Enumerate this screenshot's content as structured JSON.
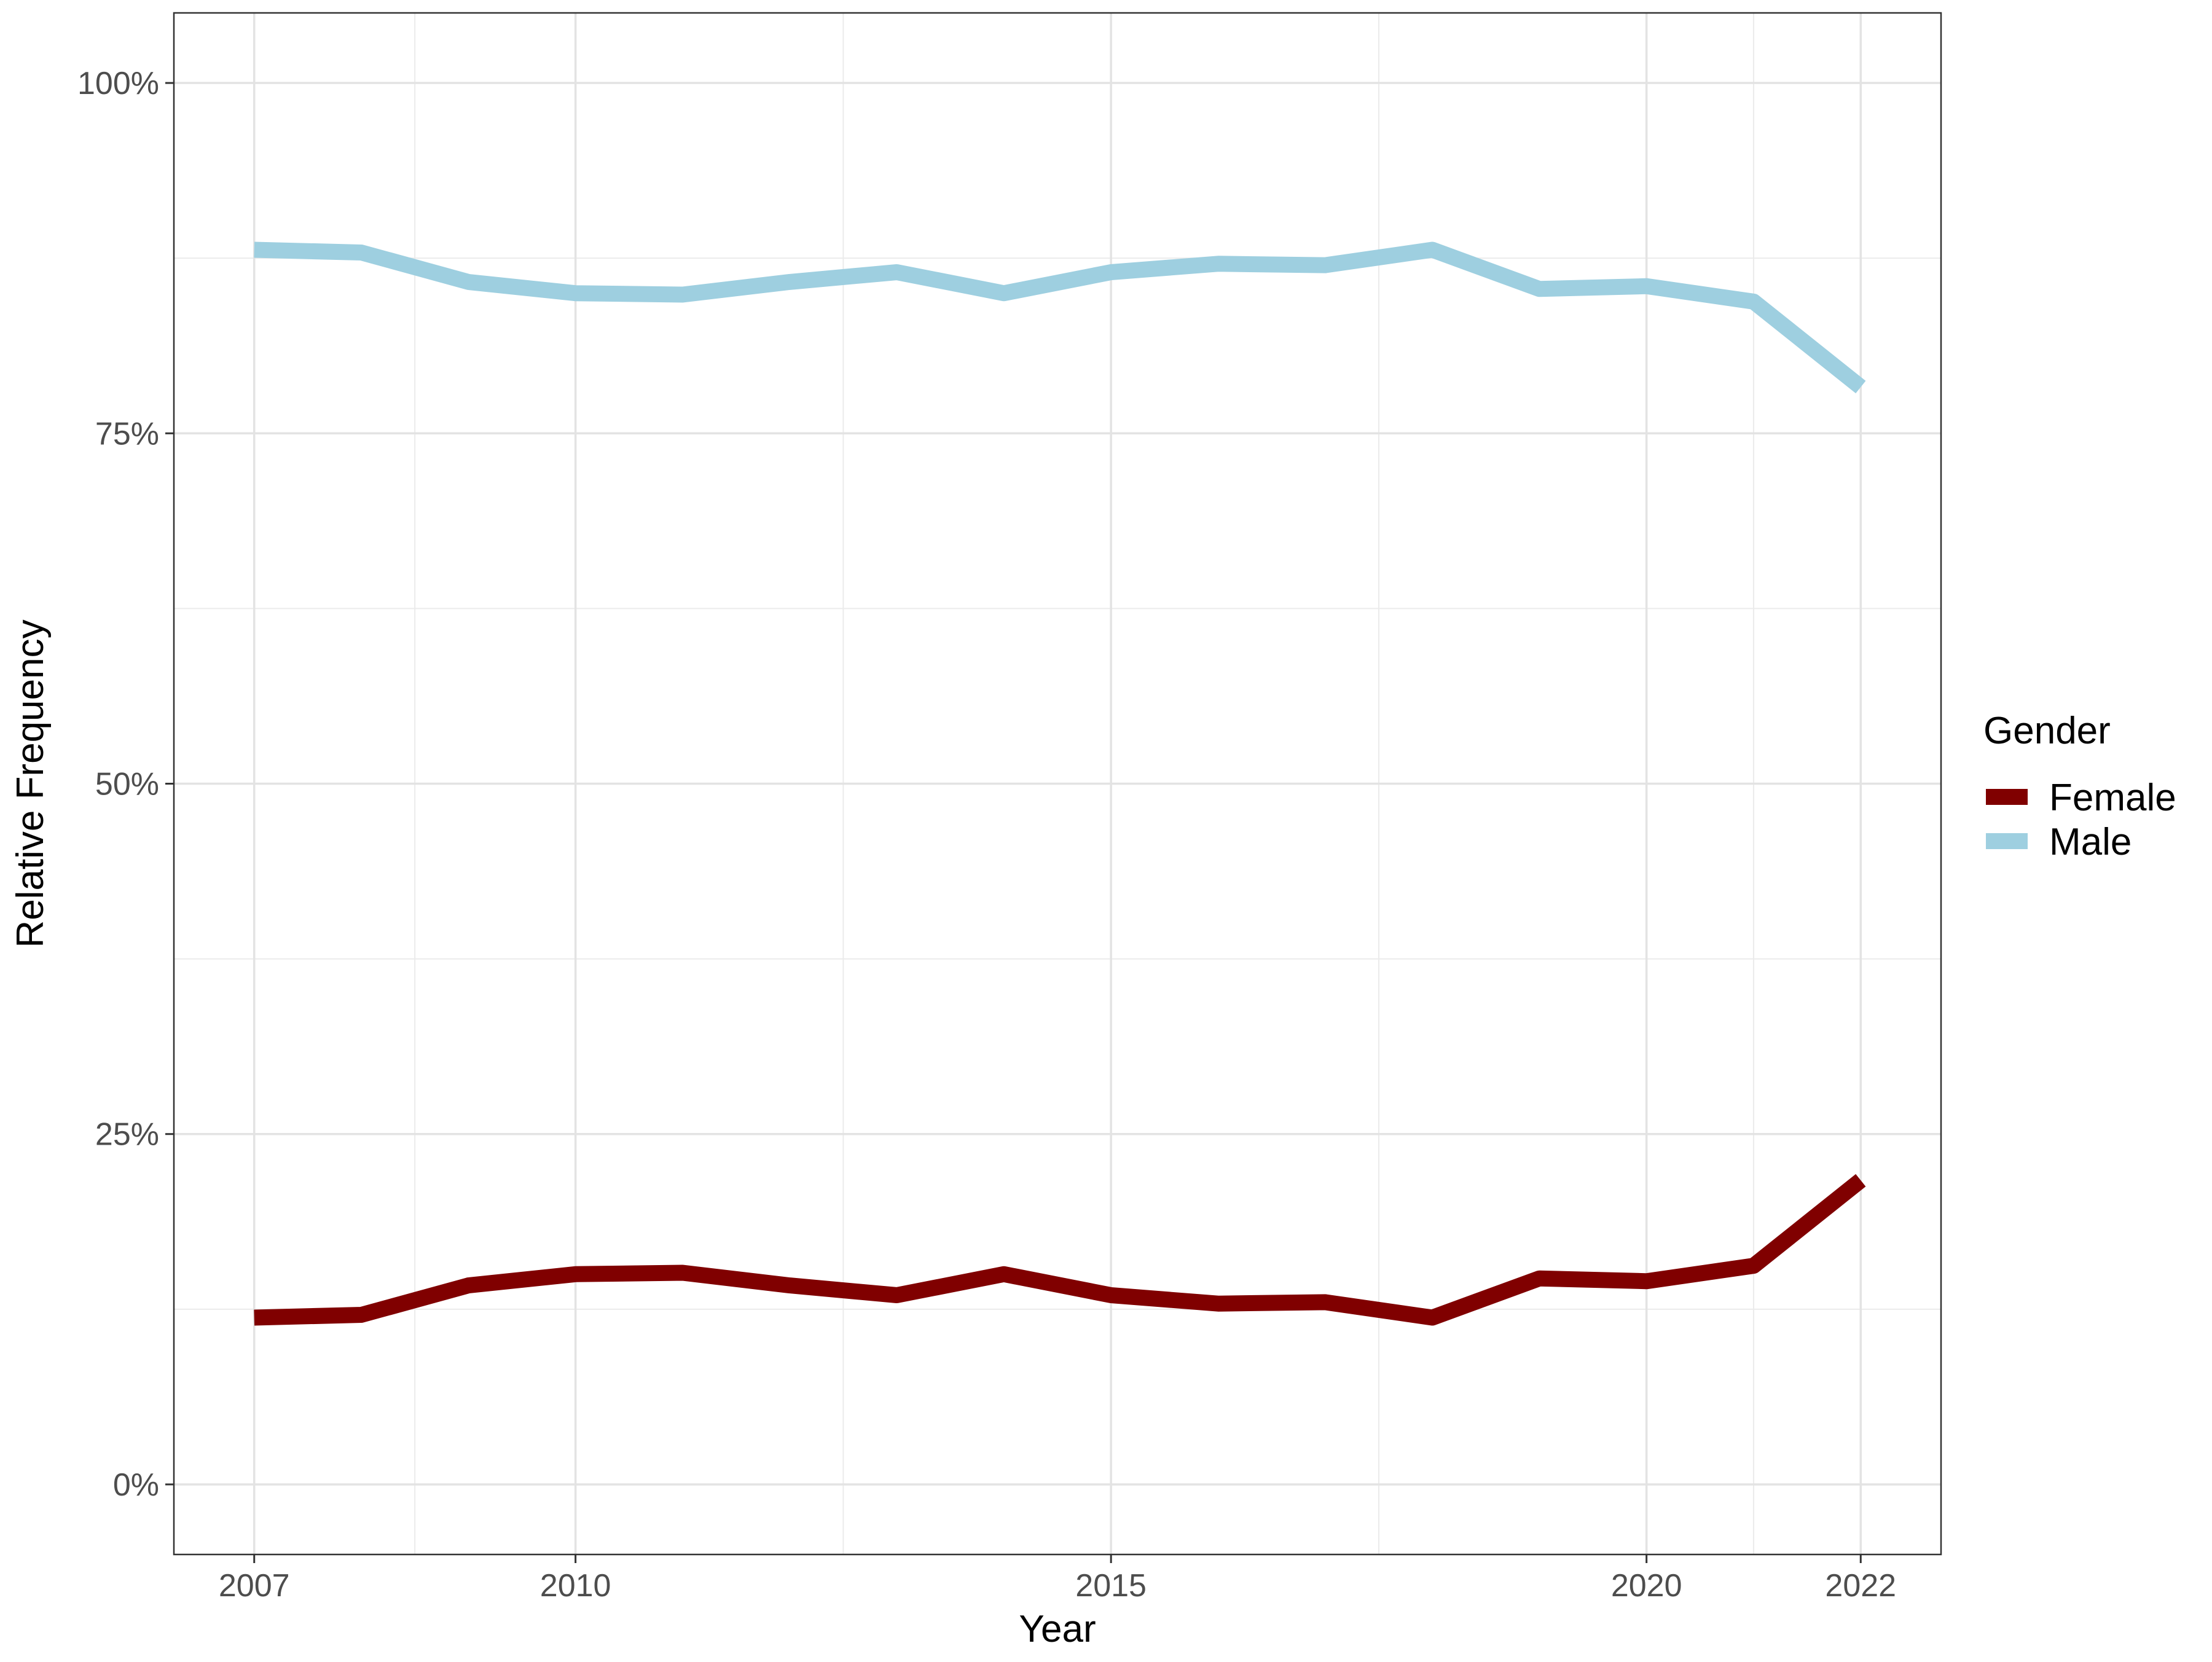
{
  "chart_data": {
    "type": "line",
    "xlabel": "Year",
    "ylabel": "Relative Frequency",
    "x_ticks": [
      2007,
      2010,
      2015,
      2020,
      2022
    ],
    "x_range": [
      2006.25,
      2022.75
    ],
    "y_ticks": [
      0,
      25,
      50,
      75,
      100
    ],
    "y_tick_labels": [
      "0%",
      "25%",
      "50%",
      "75%",
      "100%"
    ],
    "y_range": [
      -5,
      105
    ],
    "grid": true,
    "legend": {
      "title": "Gender",
      "position": "right"
    },
    "x": [
      2007,
      2008,
      2009,
      2010,
      2011,
      2012,
      2013,
      2014,
      2015,
      2016,
      2017,
      2018,
      2019,
      2020,
      2021,
      2022
    ],
    "series": [
      {
        "name": "Female",
        "color": "#800000",
        "values": [
          11.9,
          12.1,
          14.2,
          15.0,
          15.1,
          14.2,
          13.5,
          15.0,
          13.5,
          12.9,
          13.0,
          11.9,
          14.7,
          14.5,
          15.6,
          21.7
        ]
      },
      {
        "name": "Male",
        "color": "#9ecfe0",
        "values": [
          88.1,
          87.9,
          85.8,
          85.0,
          84.9,
          85.8,
          86.5,
          85.0,
          86.5,
          87.1,
          87.0,
          88.1,
          85.3,
          85.5,
          84.4,
          78.3
        ]
      }
    ]
  }
}
